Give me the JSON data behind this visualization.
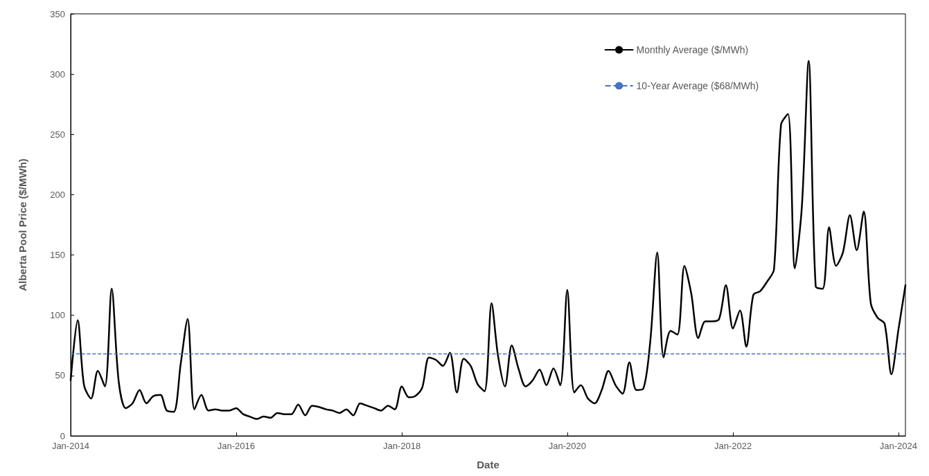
{
  "chart_data": {
    "type": "line",
    "xlabel": "Date",
    "ylabel": "Alberta Pool Price ($/MWh)",
    "x": [
      "2014-01",
      "2014-02",
      "2014-03",
      "2014-04",
      "2014-05",
      "2014-06",
      "2014-07",
      "2014-08",
      "2014-09",
      "2014-10",
      "2014-11",
      "2014-12",
      "2015-01",
      "2015-02",
      "2015-03",
      "2015-04",
      "2015-05",
      "2015-06",
      "2015-07",
      "2015-08",
      "2015-09",
      "2015-10",
      "2015-11",
      "2015-12",
      "2016-01",
      "2016-02",
      "2016-03",
      "2016-04",
      "2016-05",
      "2016-06",
      "2016-07",
      "2016-08",
      "2016-09",
      "2016-10",
      "2016-11",
      "2016-12",
      "2017-01",
      "2017-02",
      "2017-03",
      "2017-04",
      "2017-05",
      "2017-06",
      "2017-07",
      "2017-08",
      "2017-09",
      "2017-10",
      "2017-11",
      "2017-12",
      "2018-01",
      "2018-02",
      "2018-03",
      "2018-04",
      "2018-05",
      "2018-06",
      "2018-07",
      "2018-08",
      "2018-09",
      "2018-10",
      "2018-11",
      "2018-12",
      "2019-01",
      "2019-02",
      "2019-03",
      "2019-04",
      "2019-05",
      "2019-06",
      "2019-07",
      "2019-08",
      "2019-09",
      "2019-10",
      "2019-11",
      "2019-12",
      "2020-01",
      "2020-02",
      "2020-03",
      "2020-04",
      "2020-05",
      "2020-06",
      "2020-07",
      "2020-08",
      "2020-09",
      "2020-10",
      "2020-11",
      "2020-12",
      "2021-01",
      "2021-02",
      "2021-03",
      "2021-04",
      "2021-05",
      "2021-06",
      "2021-07",
      "2021-08",
      "2021-09",
      "2021-10",
      "2021-11",
      "2021-12",
      "2022-01",
      "2022-02",
      "2022-03",
      "2022-04",
      "2022-05",
      "2022-06",
      "2022-07",
      "2022-08",
      "2022-09",
      "2022-10",
      "2022-11",
      "2022-12",
      "2023-01",
      "2023-02",
      "2023-03",
      "2023-04",
      "2023-05",
      "2023-06",
      "2023-07",
      "2023-08",
      "2023-09",
      "2023-10",
      "2023-11",
      "2023-12",
      "2024-01",
      "2024-02"
    ],
    "series": [
      {
        "name": "Monthly Average ($/MWh)",
        "color": "#000000",
        "values": [
          46,
          96,
          42,
          31,
          54,
          41,
          122,
          45,
          23,
          27,
          38,
          27,
          33,
          34,
          21,
          20,
          59,
          97,
          22,
          34,
          21,
          22,
          21,
          21,
          23,
          18,
          16,
          14,
          16,
          15,
          19,
          18,
          18,
          26,
          17,
          25,
          24,
          22,
          21,
          19,
          22,
          17,
          27,
          25,
          23,
          21,
          25,
          22,
          41,
          32,
          33,
          40,
          65,
          63,
          58,
          69,
          36,
          64,
          58,
          43,
          37,
          110,
          67,
          41,
          75,
          55,
          41,
          46,
          55,
          42,
          56,
          42,
          121,
          36,
          42,
          31,
          27,
          38,
          54,
          42,
          35,
          61,
          38,
          39,
          78,
          152,
          65,
          87,
          84,
          141,
          118,
          81,
          95,
          95,
          97,
          125,
          89,
          104,
          74,
          117,
          120,
          128,
          138,
          258,
          267,
          139,
          190,
          311,
          124,
          122,
          173,
          141,
          152,
          183,
          154,
          186,
          110,
          98,
          93,
          51,
          88,
          125
        ]
      }
    ],
    "ref_lines": [
      {
        "axis": "y",
        "value": 68,
        "label": "10-Year Average ($68/MWh)",
        "color": "#4472c4",
        "line_style": "dashed"
      }
    ],
    "xlim": [
      "2014-01",
      "2024-02"
    ],
    "xticks": [
      {
        "value": "2014-01",
        "label": "Jan-2014"
      },
      {
        "value": "2016-01",
        "label": "Jan-2016"
      },
      {
        "value": "2018-01",
        "label": "Jan-2018"
      },
      {
        "value": "2020-01",
        "label": "Jan-2020"
      },
      {
        "value": "2022-01",
        "label": "Jan-2022"
      },
      {
        "value": "2024-01",
        "label": "Jan-2024"
      }
    ],
    "ylim": [
      0,
      350
    ],
    "yticks": [
      0,
      50,
      100,
      150,
      200,
      250,
      300,
      350
    ],
    "grid": false,
    "legend": "top right",
    "marker": "none",
    "line_style": "solid"
  }
}
